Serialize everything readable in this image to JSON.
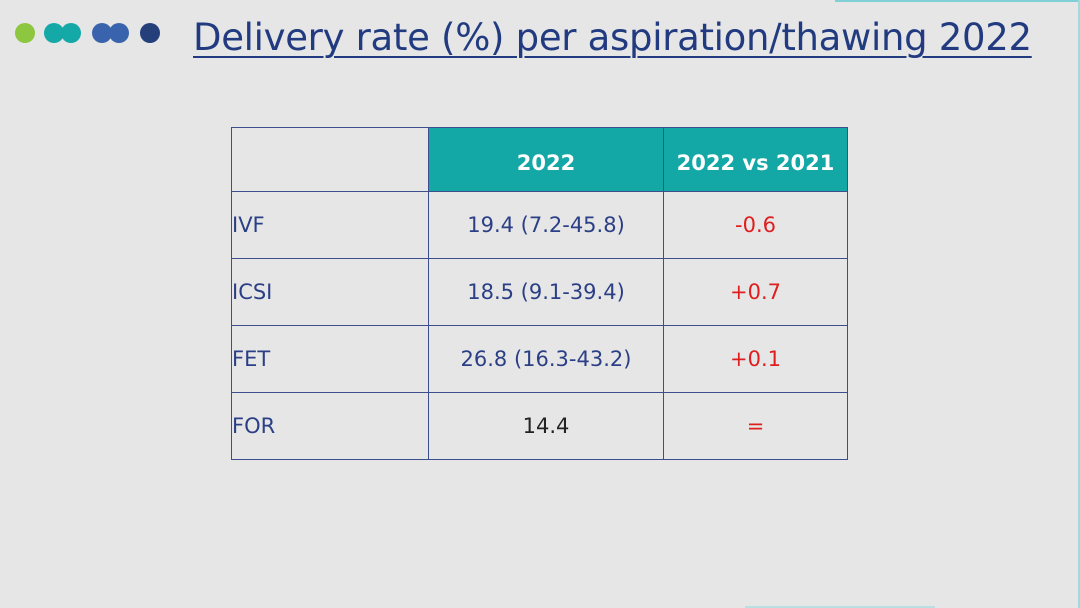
{
  "slide": {
    "title": "Delivery rate (%) per aspiration/thawing 2022"
  },
  "decoration": {
    "dots": [
      {
        "color": "#8dc63f"
      },
      {
        "color": "#14a9a7"
      },
      {
        "color": "#14a9a7"
      },
      {
        "color": "#3a63ad"
      },
      {
        "color": "#3a63ad"
      },
      {
        "color": "#243f7a"
      }
    ]
  },
  "table": {
    "headers": [
      "",
      "2022",
      "2022 vs 2021"
    ],
    "rows": [
      {
        "label": "IVF",
        "value": "19.4 (7.2-45.8)",
        "change": "-0.6"
      },
      {
        "label": "ICSI",
        "value": "18.5 (9.1-39.4)",
        "change": "+0.7"
      },
      {
        "label": "FET",
        "value": "26.8 (16.3-43.2)",
        "change": "+0.1"
      },
      {
        "label": "FOR",
        "value": "14.4",
        "change": "="
      }
    ]
  },
  "colors": {
    "header_bg": "#13a8a6",
    "header_text": "#ffffff",
    "text_primary": "#2b3f86",
    "change_text": "#e01e1e",
    "background": "#e6e6e6"
  }
}
